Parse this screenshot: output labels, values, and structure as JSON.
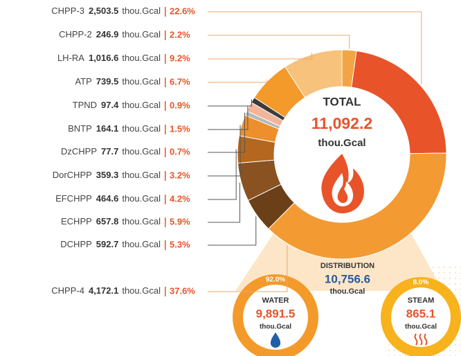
{
  "chart_data": {
    "type": "donut",
    "unit": "thou.Gcal",
    "categories": [
      "CHPP-3",
      "CHPP-2",
      "LH-RA",
      "ATP",
      "TPND",
      "BNTP",
      "DzCHPP",
      "DorCHPP",
      "EFCHPP",
      "ECHPP",
      "DCHPP",
      "CHPP-4"
    ],
    "values": [
      2503.5,
      246.9,
      1016.6,
      739.5,
      97.4,
      164.1,
      77.7,
      359.3,
      464.6,
      657.8,
      592.7,
      4172.1
    ],
    "value_labels": [
      "2,503.5",
      "246.9",
      "1,016.6",
      "739.5",
      "97.4",
      "164.1",
      "77.7",
      "359.3",
      "464.6",
      "657.8",
      "592.7",
      "4,172.1"
    ],
    "percents": [
      22.6,
      2.2,
      9.2,
      6.7,
      0.9,
      1.5,
      0.7,
      3.2,
      4.2,
      5.9,
      5.3,
      37.6
    ],
    "percent_labels": [
      "22.6%",
      "2.2%",
      "9.2%",
      "6.7%",
      "0.9%",
      "1.5%",
      "0.7%",
      "3.2%",
      "4.2%",
      "5.9%",
      "5.3%",
      "37.6%"
    ],
    "colors": [
      "#e8532a",
      "#f3a446",
      "#f6c27c",
      "#f39a2a",
      "#3c3c3c",
      "#f2b59a",
      "#b8b8b8",
      "#ec8f2c",
      "#b5671f",
      "#8a5220",
      "#6b3f18",
      "#f39a33"
    ],
    "total": {
      "title": "TOTAL",
      "value": 11092.2,
      "value_label": "11,092.2",
      "unit": "thou.Gcal"
    },
    "distribution": {
      "title": "DISTRIBUTION",
      "value": 10756.6,
      "value_label": "10,756.6",
      "unit": "thou.Gcal",
      "parts": [
        {
          "name": "WATER",
          "percent": 92.0,
          "percent_label": "92.0%",
          "value": 9891.5,
          "value_label": "9,891.5",
          "unit": "thou.Gcal",
          "color": "#f39a2a"
        },
        {
          "name": "STEAM",
          "percent": 8.0,
          "percent_label": "8.0%",
          "value": 865.1,
          "value_label": "865.1",
          "unit": "thou.Gcal",
          "color": "#f7b21c"
        }
      ]
    }
  }
}
